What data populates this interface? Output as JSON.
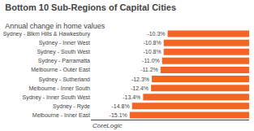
{
  "chart_data": {
    "type": "bar",
    "orientation": "horizontal",
    "title": "Bottom 10 Sub-Regions of Capital Cities",
    "subtitle": "Annual change in home values",
    "footer": "CoreLogic",
    "categories": [
      "Sydney - Blkm Hills & Hawkesbury",
      "Sydney - Inner West",
      "Sydney - South West",
      "Sydney - Parramatta",
      "Melbourne - Outer East",
      "Sydney - Sutherland",
      "Melbourne - Inner South",
      "Sydney - Inner South West",
      "Sydney - Ryde",
      "Melbourne - Inner East"
    ],
    "values": [
      -10.3,
      -10.8,
      -10.8,
      -11.0,
      -11.2,
      -12.3,
      -12.4,
      -13.4,
      -14.8,
      -15.1
    ],
    "value_labels": [
      "-10.3%",
      "-10.8%",
      "-10.8%",
      "-11.0%",
      "-11.2%",
      "-12.3%",
      "-12.4%",
      "-13.4%",
      "-14.8%",
      "-15.1%"
    ],
    "data_labels": true,
    "color": "#f26522",
    "xlim": [
      -20,
      0
    ],
    "grid": false,
    "tick_labels": "y"
  }
}
